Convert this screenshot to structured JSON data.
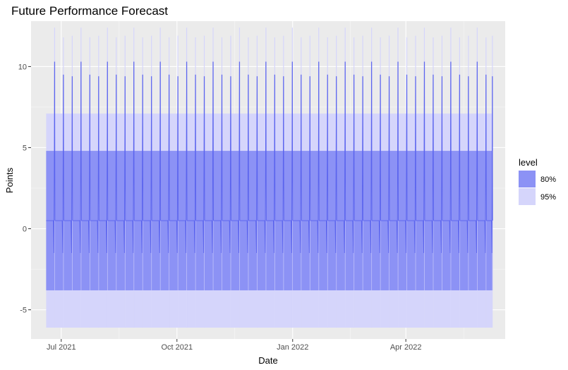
{
  "chart_data": {
    "type": "area",
    "title": "Future Performance Forecast",
    "xlabel": "Date",
    "ylabel": "Points",
    "x_tick_labels": [
      "Jul 2021",
      "Oct 2021",
      "Jan 2022",
      "Apr 2022"
    ],
    "x_tick_dates": [
      "2021-07-01",
      "2021-10-01",
      "2022-01-01",
      "2022-04-01"
    ],
    "y_tick_labels": [
      "-5",
      "0",
      "5",
      "10"
    ],
    "y_ticks": [
      -5,
      0,
      5,
      10
    ],
    "xlim": [
      "2021-06-07",
      "2022-06-19"
    ],
    "ylim": [
      -6.8,
      12.8
    ],
    "forecast_range": [
      "2021-06-19",
      "2022-06-09"
    ],
    "period_days": 7,
    "intervals": [
      {
        "level": "95%",
        "lower": -6.1,
        "upper": 7.1
      },
      {
        "level": "80%",
        "lower": -3.8,
        "upper": 4.8
      }
    ],
    "weekly_pattern": {
      "spike_upper_95": [
        12.4,
        11.8,
        11.9
      ],
      "spike_upper_80": [
        10.3,
        9.5,
        9.4
      ],
      "baseline_point": 0.5,
      "trough_lower_80": -1.5
    },
    "legend": {
      "title": "level",
      "entries": [
        {
          "label": "80%",
          "color": "#8c92f5"
        },
        {
          "label": "95%",
          "color": "#d5d5fb"
        }
      ]
    },
    "colors": {
      "panel": "#ebebeb",
      "grid_major": "#ffffff",
      "band95": "#d5d5fb",
      "band80": "#8c92f5",
      "line": "#5a63ee"
    }
  }
}
